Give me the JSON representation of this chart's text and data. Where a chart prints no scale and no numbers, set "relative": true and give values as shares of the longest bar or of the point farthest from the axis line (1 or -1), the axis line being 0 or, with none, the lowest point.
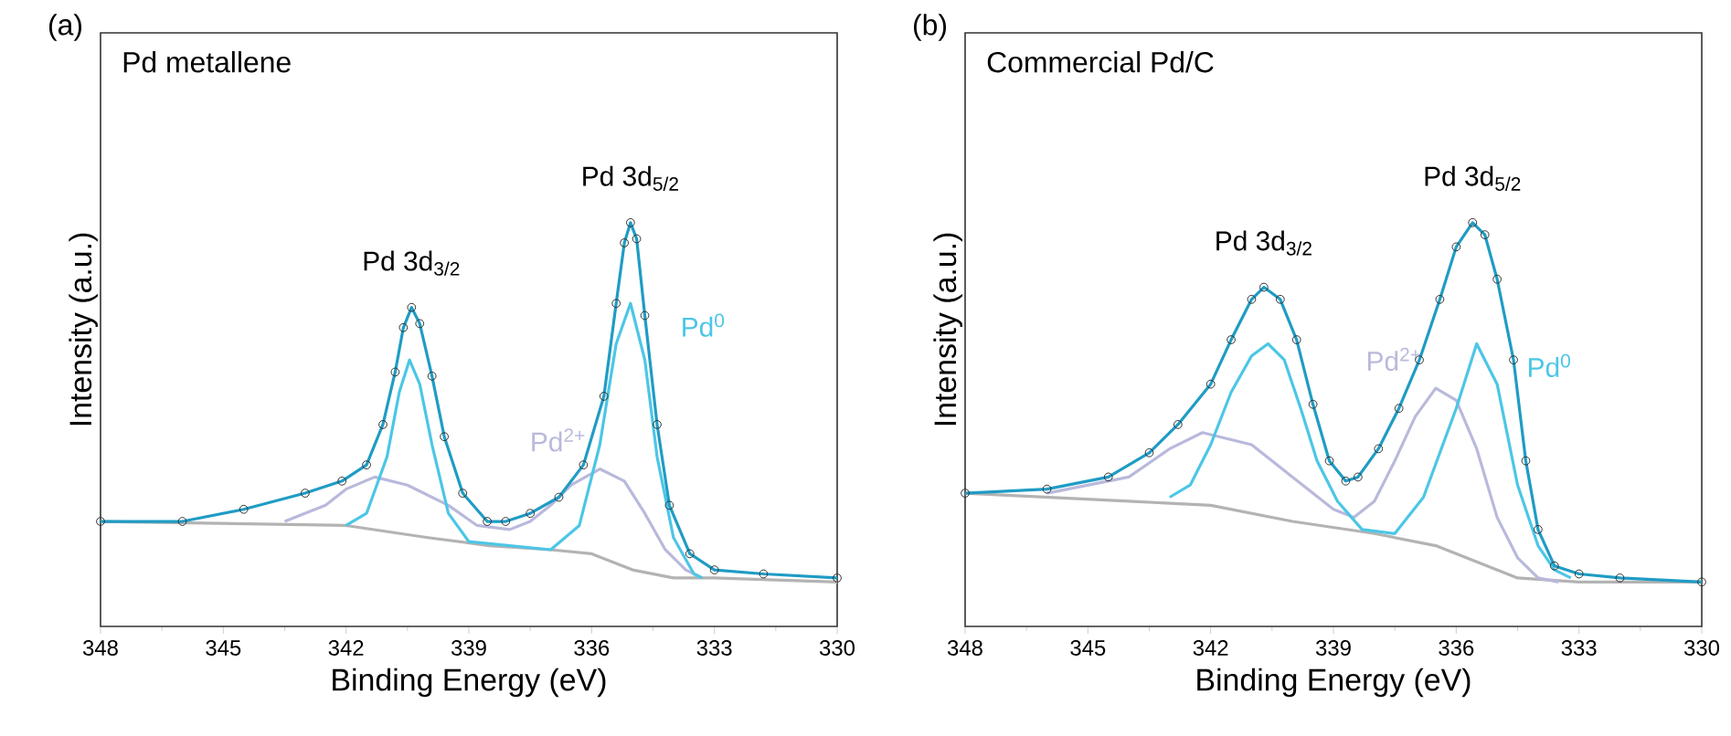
{
  "chart_data": [
    {
      "type": "line",
      "title": "Pd metallene",
      "xlabel": "Binding Energy (eV)",
      "ylabel": "Intensity (a.u.)",
      "relative": true,
      "xlim": [
        348,
        330
      ],
      "xticks": [
        348,
        345,
        342,
        339,
        336,
        333,
        330
      ],
      "annotations": [
        "(a)",
        {
          "text": "Pd 3d$_{3/2}$",
          "x": 340.4,
          "y": 0.79
        },
        {
          "text": "Pd 3d$_{5/2}$",
          "x": 335.05,
          "y": 1.0
        }
      ],
      "series": [
        {
          "color": "#b3b3b3",
          "x": [
            348,
            342,
            340,
            338.5,
            337,
            336,
            335,
            334,
            333,
            330
          ],
          "values": [
            0.26,
            0.25,
            0.22,
            0.2,
            0.19,
            0.18,
            0.14,
            0.12,
            0.12,
            0.11
          ]
        },
        {
          "name": "Pd$^{2+}$",
          "color": "#b9b9dc",
          "x": [
            343.5,
            342.5,
            342,
            341.3,
            340.5,
            339.5,
            338.8,
            338,
            337.5,
            337,
            336.5,
            335.8,
            335.2,
            334.7,
            334.2,
            333.7,
            333.3
          ],
          "values": [
            0.26,
            0.3,
            0.34,
            0.37,
            0.35,
            0.3,
            0.25,
            0.24,
            0.26,
            0.3,
            0.35,
            0.39,
            0.36,
            0.28,
            0.19,
            0.14,
            0.12
          ]
        },
        {
          "name": "Pd$^{0}$",
          "color": "#4cc6e6",
          "x": [
            342,
            341.5,
            341,
            340.7,
            340.45,
            340.2,
            339.9,
            339.5,
            339,
            337,
            336.3,
            335.8,
            335.4,
            335.05,
            334.7,
            334.4,
            334,
            333.5,
            333.3
          ],
          "values": [
            0.25,
            0.28,
            0.42,
            0.58,
            0.66,
            0.6,
            0.45,
            0.28,
            0.21,
            0.19,
            0.25,
            0.45,
            0.7,
            0.8,
            0.66,
            0.42,
            0.22,
            0.13,
            0.12
          ]
        },
        {
          "type": "scatter",
          "marker": "circle",
          "color": "#333333",
          "x": [
            348,
            346,
            344.5,
            343,
            342.1,
            341.5,
            341.1,
            340.8,
            340.6,
            340.4,
            340.2,
            339.9,
            339.6,
            339.15,
            338.55,
            338.1,
            337.5,
            336.8,
            336.2,
            335.7,
            335.4,
            335.2,
            335.05,
            334.9,
            334.7,
            334.4,
            334.1,
            333.6,
            333,
            331.8,
            330
          ],
          "values": [
            0.26,
            0.26,
            0.29,
            0.33,
            0.36,
            0.4,
            0.5,
            0.63,
            0.74,
            0.79,
            0.75,
            0.62,
            0.47,
            0.33,
            0.26,
            0.26,
            0.28,
            0.32,
            0.4,
            0.57,
            0.8,
            0.95,
            1.0,
            0.96,
            0.77,
            0.5,
            0.3,
            0.18,
            0.14,
            0.13,
            0.12
          ]
        },
        {
          "color": "#1f9cc4",
          "x": [
            348,
            346,
            344.5,
            343,
            342.1,
            341.5,
            341.1,
            340.8,
            340.6,
            340.4,
            340.2,
            339.9,
            339.6,
            339.15,
            338.55,
            338.1,
            337.5,
            336.8,
            336.2,
            335.7,
            335.4,
            335.2,
            335.05,
            334.9,
            334.7,
            334.4,
            334.1,
            333.6,
            333,
            331.8,
            330
          ],
          "values": [
            0.26,
            0.26,
            0.29,
            0.33,
            0.36,
            0.4,
            0.5,
            0.63,
            0.74,
            0.79,
            0.75,
            0.62,
            0.47,
            0.33,
            0.26,
            0.26,
            0.28,
            0.32,
            0.4,
            0.57,
            0.8,
            0.95,
            1.0,
            0.96,
            0.77,
            0.5,
            0.3,
            0.18,
            0.14,
            0.13,
            0.12
          ]
        }
      ]
    },
    {
      "type": "line",
      "title": "Commercial Pd/C",
      "xlabel": "Binding Energy (eV)",
      "ylabel": "Intensity (a.u.)",
      "relative": true,
      "xlim": [
        348,
        330
      ],
      "xticks": [
        348,
        345,
        342,
        339,
        336,
        333,
        330
      ],
      "annotations": [
        "(b)",
        {
          "text": "Pd 3d$_{3/2}$",
          "x": 340.7,
          "y": 0.84
        },
        {
          "text": "Pd 3d$_{5/2}$",
          "x": 335.6,
          "y": 1.0
        }
      ],
      "series": [
        {
          "color": "#b3b3b3",
          "x": [
            348,
            344,
            342,
            340,
            338,
            336.5,
            335.5,
            334.5,
            333,
            330
          ],
          "values": [
            0.33,
            0.31,
            0.3,
            0.26,
            0.23,
            0.2,
            0.16,
            0.12,
            0.11,
            0.11
          ]
        },
        {
          "name": "Pd$^{2+}$",
          "color": "#b9b9dc",
          "x": [
            346,
            344,
            343,
            342.2,
            341,
            340,
            339,
            338.5,
            338,
            337.5,
            337,
            336.5,
            336,
            335.5,
            335,
            334.5,
            334,
            333.5
          ],
          "values": [
            0.33,
            0.37,
            0.44,
            0.48,
            0.45,
            0.37,
            0.29,
            0.27,
            0.31,
            0.41,
            0.52,
            0.59,
            0.56,
            0.44,
            0.27,
            0.17,
            0.12,
            0.11
          ]
        },
        {
          "name": "Pd$^{0}$",
          "color": "#4cc6e6",
          "x": [
            343,
            342.5,
            342,
            341.5,
            341,
            340.6,
            340.2,
            339.8,
            339.4,
            338.9,
            338.3,
            337.5,
            336.8,
            336,
            335.5,
            335,
            334.5,
            334,
            333.6,
            333.2
          ],
          "values": [
            0.32,
            0.35,
            0.45,
            0.58,
            0.67,
            0.7,
            0.66,
            0.54,
            0.41,
            0.31,
            0.24,
            0.23,
            0.32,
            0.54,
            0.7,
            0.6,
            0.35,
            0.2,
            0.14,
            0.12
          ]
        },
        {
          "type": "scatter",
          "marker": "circle",
          "color": "#333333",
          "x": [
            348,
            346,
            344.5,
            343.5,
            342.8,
            342,
            341.5,
            341,
            340.7,
            340.3,
            339.9,
            339.5,
            339.1,
            338.7,
            338.4,
            337.9,
            337.4,
            336.9,
            336.4,
            336,
            335.6,
            335.3,
            335,
            334.6,
            334.3,
            334,
            333.6,
            333,
            332,
            330
          ],
          "values": [
            0.33,
            0.34,
            0.37,
            0.43,
            0.5,
            0.6,
            0.71,
            0.81,
            0.84,
            0.81,
            0.71,
            0.55,
            0.41,
            0.36,
            0.37,
            0.44,
            0.54,
            0.66,
            0.81,
            0.94,
            1.0,
            0.97,
            0.86,
            0.66,
            0.41,
            0.24,
            0.15,
            0.13,
            0.12,
            0.11
          ]
        },
        {
          "color": "#1f9cc4",
          "x": [
            348,
            346,
            344.5,
            343.5,
            342.8,
            342,
            341.5,
            341,
            340.7,
            340.3,
            339.9,
            339.5,
            339.1,
            338.7,
            338.4,
            337.9,
            337.4,
            336.9,
            336.4,
            336,
            335.6,
            335.3,
            335,
            334.6,
            334.3,
            334,
            333.6,
            333,
            332,
            330
          ],
          "values": [
            0.33,
            0.34,
            0.37,
            0.43,
            0.5,
            0.6,
            0.71,
            0.81,
            0.84,
            0.81,
            0.71,
            0.55,
            0.41,
            0.36,
            0.37,
            0.44,
            0.54,
            0.66,
            0.81,
            0.94,
            1.0,
            0.97,
            0.86,
            0.66,
            0.41,
            0.24,
            0.15,
            0.13,
            0.12,
            0.11
          ]
        }
      ]
    }
  ]
}
